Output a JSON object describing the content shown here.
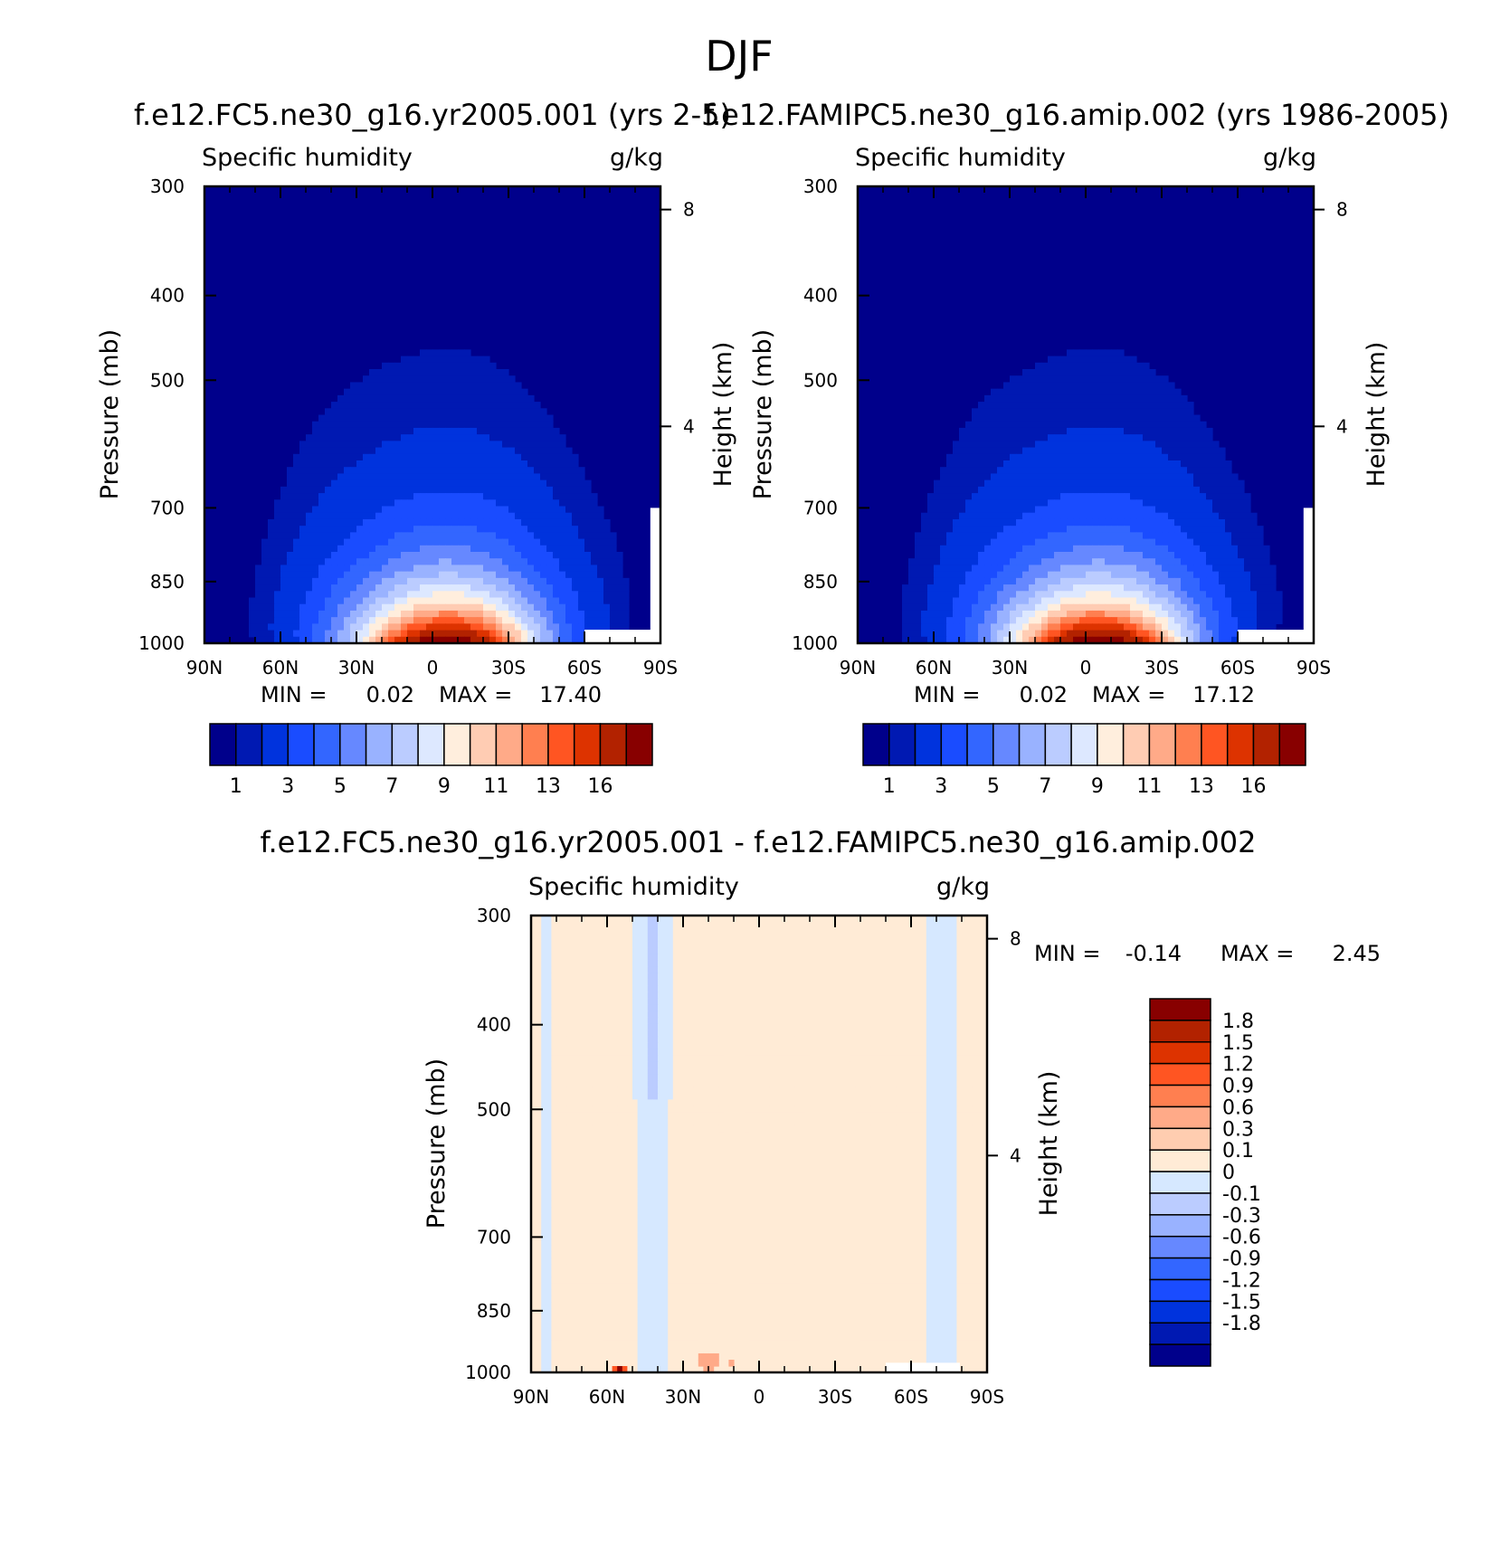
{
  "figure": {
    "title": "DJF"
  },
  "colors": {
    "abs_levels": [
      "#00008b",
      "#0019b2",
      "#0033dd",
      "#1a4cff",
      "#3366ff",
      "#6688ff",
      "#99b2ff",
      "#bbccff",
      "#dde8ff",
      "#ffeedd",
      "#ffccb3",
      "#ffaa88",
      "#ff7f50",
      "#ff5522",
      "#dd3300",
      "#b22200",
      "#880000"
    ],
    "diff_levels": [
      "#00008b",
      "#0019b2",
      "#0033dd",
      "#1a4cff",
      "#3366ff",
      "#6688ff",
      "#99b2ff",
      "#bbccff",
      "#d6e8ff",
      "#ffebd6",
      "#ffcdb0",
      "#ffaa88",
      "#ff7f50",
      "#ff5522",
      "#dd3300",
      "#b22200",
      "#880000"
    ]
  },
  "chart_data": [
    {
      "type": "heatmap",
      "panel": "model",
      "title": "f.e12.FC5.ne30_g16.yr2005.001 (yrs 2-5)",
      "left_label": "Specific humidity",
      "right_label": "g/kg",
      "xlabel": "",
      "ylabel": "Pressure (mb)",
      "ylabel_right": "Height (km)",
      "x_ticks": [
        "90N",
        "60N",
        "30N",
        "0",
        "30S",
        "60S",
        "90S"
      ],
      "y_ticks": [
        "300",
        "400",
        "500",
        "700",
        "850",
        "1000"
      ],
      "y_ticks_right": [
        "8",
        "4"
      ],
      "ylim": [
        1000,
        300
      ],
      "xlim": [
        90,
        -90
      ],
      "y_scale": "log",
      "min_label": "MIN =",
      "min_value": "0.02",
      "max_label": "MAX =",
      "max_value": "17.40",
      "colorbar": {
        "orientation": "horizontal",
        "tick_labels": [
          "1",
          "3",
          "5",
          "7",
          "9",
          "11",
          "13",
          "16"
        ]
      }
    },
    {
      "type": "heatmap",
      "panel": "obs",
      "title": "f.e12.FAMIPC5.ne30_g16.amip.002 (yrs 1986-2005)",
      "left_label": "Specific humidity",
      "right_label": "g/kg",
      "xlabel": "",
      "ylabel": "Pressure (mb)",
      "ylabel_right": "Height (km)",
      "x_ticks": [
        "90N",
        "60N",
        "30N",
        "0",
        "30S",
        "60S",
        "90S"
      ],
      "y_ticks": [
        "300",
        "400",
        "500",
        "700",
        "850",
        "1000"
      ],
      "y_ticks_right": [
        "8",
        "4"
      ],
      "ylim": [
        1000,
        300
      ],
      "xlim": [
        90,
        -90
      ],
      "y_scale": "log",
      "min_label": "MIN =",
      "min_value": "0.02",
      "max_label": "MAX =",
      "max_value": "17.12",
      "colorbar": {
        "orientation": "horizontal",
        "tick_labels": [
          "1",
          "3",
          "5",
          "7",
          "9",
          "11",
          "13",
          "16"
        ]
      }
    },
    {
      "type": "heatmap",
      "panel": "difference",
      "title": "f.e12.FC5.ne30_g16.yr2005.001 - f.e12.FAMIPC5.ne30_g16.amip.002",
      "left_label": "Specific humidity",
      "right_label": "g/kg",
      "xlabel": "",
      "ylabel": "Pressure (mb)",
      "ylabel_right": "Height (km)",
      "x_ticks": [
        "90N",
        "60N",
        "30N",
        "0",
        "30S",
        "60S",
        "90S"
      ],
      "y_ticks": [
        "300",
        "400",
        "500",
        "700",
        "850",
        "1000"
      ],
      "y_ticks_right": [
        "8",
        "4"
      ],
      "ylim": [
        1000,
        300
      ],
      "xlim": [
        90,
        -90
      ],
      "y_scale": "log",
      "min_label": "MIN =",
      "min_value": "-0.14",
      "max_label": "MAX =",
      "max_value": "2.45",
      "colorbar": {
        "orientation": "vertical",
        "tick_labels": [
          "1.8",
          "1.5",
          "1.2",
          "0.9",
          "0.6",
          "0.3",
          "0.1",
          "0",
          "-0.1",
          "-0.3",
          "-0.6",
          "-0.9",
          "-1.2",
          "-1.5",
          "-1.8"
        ]
      }
    }
  ]
}
